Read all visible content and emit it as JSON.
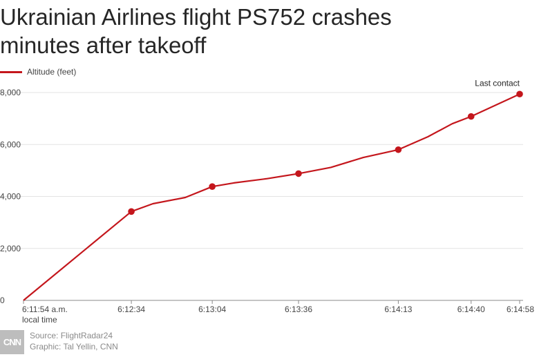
{
  "title": "Ukrainian Airlines flight PS752 crashes minutes after takeoff",
  "legend": {
    "label": "Altitude (feet)"
  },
  "colors": {
    "line": "#c4161c",
    "grid": "#e3e3e3",
    "axis": "#888888"
  },
  "chart_data": {
    "type": "line",
    "title": "Ukrainian Airlines flight PS752 crashes minutes after takeoff",
    "xlabel": "",
    "ylabel": "",
    "ylim": [
      0,
      8000
    ],
    "yticks": [
      0,
      2000,
      4000,
      6000,
      8000
    ],
    "ytick_labels": [
      "0",
      "2,000",
      "4,000",
      "6,000",
      "8,000"
    ],
    "xlim_seconds": [
      0,
      184
    ],
    "xticks": [
      {
        "t": 0,
        "label": "6:11:54 a.m.",
        "sublabel": "local time"
      },
      {
        "t": 40,
        "label": "6:12:34"
      },
      {
        "t": 70,
        "label": "6:13:04"
      },
      {
        "t": 102,
        "label": "6:13:36"
      },
      {
        "t": 139,
        "label": "6:14:13"
      },
      {
        "t": 166,
        "label": "6:14:40"
      },
      {
        "t": 184,
        "label": "6:14:58"
      }
    ],
    "series": [
      {
        "name": "Altitude (feet)",
        "points": [
          {
            "t": 0,
            "y": 0
          },
          {
            "t": 40,
            "y": 3420,
            "marker": true
          },
          {
            "t": 48,
            "y": 3720
          },
          {
            "t": 60,
            "y": 3960
          },
          {
            "t": 70,
            "y": 4380,
            "marker": true
          },
          {
            "t": 78,
            "y": 4520
          },
          {
            "t": 90,
            "y": 4680
          },
          {
            "t": 102,
            "y": 4880,
            "marker": true
          },
          {
            "t": 114,
            "y": 5120
          },
          {
            "t": 126,
            "y": 5500
          },
          {
            "t": 139,
            "y": 5800,
            "marker": true
          },
          {
            "t": 150,
            "y": 6300
          },
          {
            "t": 159,
            "y": 6800
          },
          {
            "t": 166,
            "y": 7080,
            "marker": true
          },
          {
            "t": 184,
            "y": 7940,
            "marker": true
          }
        ]
      }
    ],
    "annotations": [
      {
        "t": 184,
        "y": 7940,
        "text": "Last contact"
      }
    ]
  },
  "footer": {
    "logo": "CNN",
    "source": "Source: FlightRadar24",
    "graphic": "Graphic: Tal Yellin, CNN"
  }
}
